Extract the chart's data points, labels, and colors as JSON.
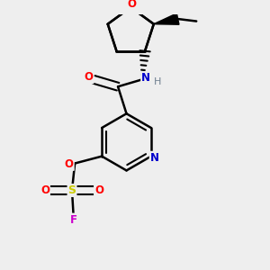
{
  "bg_color": "#eeeeee",
  "atom_colors": {
    "C": "#000000",
    "N": "#0000cc",
    "O": "#ff0000",
    "S": "#cccc00",
    "F": "#cc00cc",
    "H": "#708090"
  },
  "bond_color": "#000000"
}
